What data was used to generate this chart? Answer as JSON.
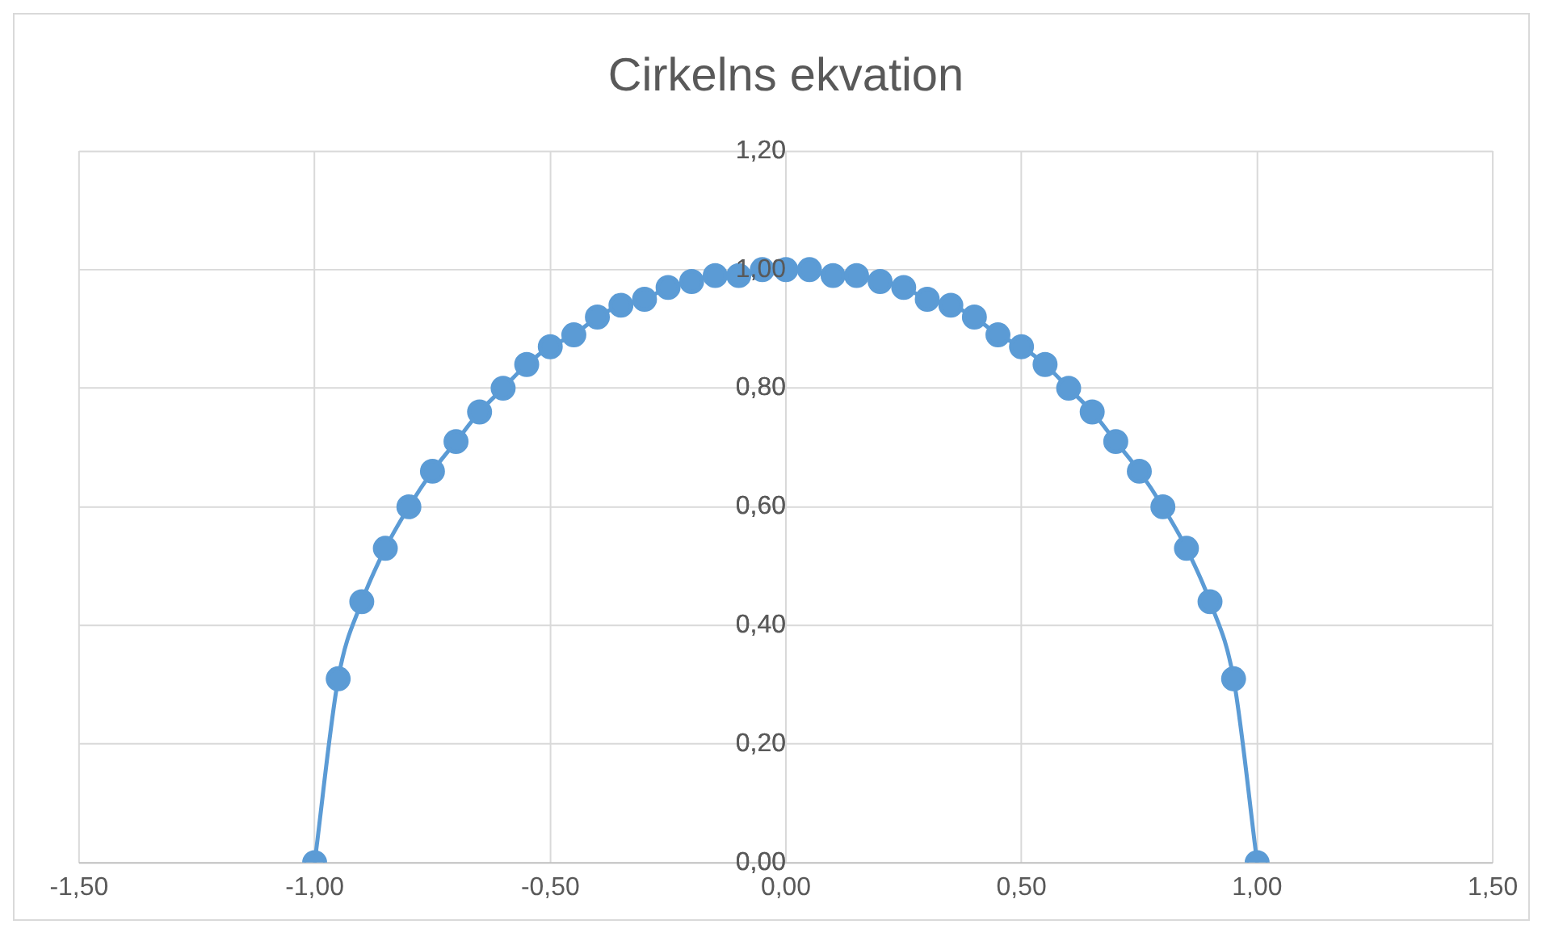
{
  "chart_data": {
    "type": "line",
    "title": "Cirkelns ekvation",
    "x": [
      -1,
      -0.95,
      -0.9,
      -0.85,
      -0.8,
      -0.75,
      -0.7,
      -0.65,
      -0.6,
      -0.55,
      -0.5,
      -0.45,
      -0.4,
      -0.35,
      -0.3,
      -0.25,
      -0.2,
      -0.15,
      -0.1,
      -0.05,
      0,
      0.05,
      0.1,
      0.15,
      0.2,
      0.25,
      0.3,
      0.35,
      0.4,
      0.45,
      0.5,
      0.55,
      0.6,
      0.65,
      0.7,
      0.75,
      0.8,
      0.85,
      0.9,
      0.95,
      1
    ],
    "series": [
      {
        "color": "#5b9bd5",
        "values": [
          0,
          0.31,
          0.44,
          0.53,
          0.6,
          0.66,
          0.71,
          0.76,
          0.8,
          0.84,
          0.87,
          0.89,
          0.92,
          0.94,
          0.95,
          0.97,
          0.98,
          0.99,
          0.99,
          1,
          1,
          1,
          0.99,
          0.99,
          0.98,
          0.97,
          0.95,
          0.94,
          0.92,
          0.89,
          0.87,
          0.84,
          0.8,
          0.76,
          0.71,
          0.66,
          0.6,
          0.53,
          0.44,
          0.31,
          0
        ]
      }
    ],
    "xlim": [
      -1.5,
      1.5
    ],
    "xticks": [
      {
        "value": -1.5,
        "label": "-1,50"
      },
      {
        "value": -1,
        "label": "-1,00"
      },
      {
        "value": -0.5,
        "label": "-0,50"
      },
      {
        "value": 0,
        "label": "0,00"
      },
      {
        "value": 0.5,
        "label": "0,50"
      },
      {
        "value": 1,
        "label": "1,00"
      },
      {
        "value": 1.5,
        "label": "1,50"
      }
    ],
    "ylim": [
      0,
      1.2
    ],
    "yticks": [
      {
        "value": 0,
        "label": "0,00"
      },
      {
        "value": 0.2,
        "label": "0,20"
      },
      {
        "value": 0.4,
        "label": "0,40"
      },
      {
        "value": 0.6,
        "label": "0,60"
      },
      {
        "value": 0.8,
        "label": "0,80"
      },
      {
        "value": 1,
        "label": "1,00"
      },
      {
        "value": 1.2,
        "label": "1,20"
      }
    ],
    "grid": true,
    "legend": false,
    "marker": "circle",
    "line_style": "solid"
  }
}
